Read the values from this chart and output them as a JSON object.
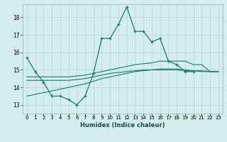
{
  "title": "",
  "xlabel": "Humidex (Indice chaleur)",
  "bg_color": "#d4eeed",
  "grid_color": "#c0d8d8",
  "line_color": "#1a7a6a",
  "xlim": [
    -0.5,
    23.5
  ],
  "ylim": [
    12.5,
    18.75
  ],
  "yticks": [
    13,
    14,
    15,
    16,
    17,
    18
  ],
  "xticks": [
    0,
    1,
    2,
    3,
    4,
    5,
    6,
    7,
    8,
    9,
    10,
    11,
    12,
    13,
    14,
    15,
    16,
    17,
    18,
    19,
    20,
    21,
    22,
    23
  ],
  "series1_x": [
    0,
    1,
    2,
    3,
    4,
    5,
    6,
    7,
    8,
    9,
    10,
    11,
    12,
    13,
    14,
    15,
    16,
    17,
    18,
    19,
    20
  ],
  "series1_y": [
    15.7,
    14.9,
    14.3,
    13.5,
    13.5,
    13.3,
    13.0,
    13.5,
    14.8,
    16.8,
    16.8,
    17.6,
    18.6,
    17.2,
    17.2,
    16.6,
    16.8,
    15.5,
    15.3,
    14.9,
    14.9
  ],
  "series2_x": [
    0,
    1,
    2,
    3,
    4,
    5,
    6,
    7,
    8,
    9,
    10,
    11,
    12,
    13,
    14,
    15,
    16,
    17,
    18,
    19,
    20,
    21,
    22,
    23
  ],
  "series2_y": [
    14.6,
    14.6,
    14.6,
    14.6,
    14.6,
    14.6,
    14.65,
    14.7,
    14.8,
    14.9,
    15.0,
    15.1,
    15.2,
    15.3,
    15.35,
    15.4,
    15.5,
    15.5,
    15.5,
    15.5,
    15.3,
    15.3,
    14.9,
    14.9
  ],
  "series3_x": [
    0,
    1,
    2,
    3,
    4,
    5,
    6,
    7,
    8,
    9,
    10,
    11,
    12,
    13,
    14,
    15,
    16,
    17,
    18,
    19,
    20,
    21,
    22,
    23
  ],
  "series3_y": [
    14.4,
    14.4,
    14.4,
    14.4,
    14.4,
    14.4,
    14.45,
    14.5,
    14.6,
    14.7,
    14.8,
    14.85,
    14.9,
    14.95,
    15.0,
    15.0,
    15.05,
    15.05,
    15.05,
    15.0,
    14.95,
    14.95,
    14.9,
    14.9
  ],
  "series4_x": [
    0,
    1,
    2,
    3,
    4,
    5,
    6,
    7,
    8,
    9,
    10,
    11,
    12,
    13,
    14,
    15,
    16,
    17,
    18,
    19,
    20,
    21,
    22,
    23
  ],
  "series4_y": [
    13.5,
    13.6,
    13.7,
    13.8,
    13.9,
    14.0,
    14.1,
    14.2,
    14.35,
    14.5,
    14.6,
    14.7,
    14.8,
    14.9,
    14.95,
    15.0,
    15.0,
    15.0,
    15.0,
    14.95,
    14.95,
    14.9,
    14.9,
    14.9
  ]
}
